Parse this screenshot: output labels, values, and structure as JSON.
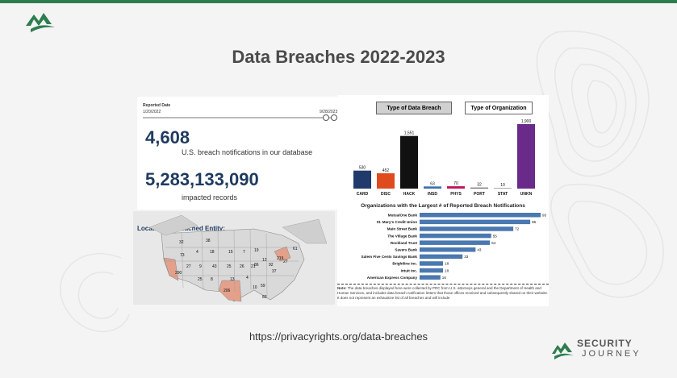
{
  "slide": {
    "title": "Data Breaches 2022-2023",
    "url": "https://privacyrights.org/data-breaches"
  },
  "brand": {
    "line1": "SECURITY",
    "line2": "JOURNEY",
    "color": "#2e7d4f"
  },
  "dashboard": {
    "reported_date_label": "Reported Date",
    "date_start": "1/20/2022",
    "date_end": "9/28/2023",
    "breach_count": "4,608",
    "breach_count_label": "U.S. breach notifications in our database",
    "records": "5,283,133,090",
    "records_label": "impacted records",
    "map_title": "Location of Breached Entity:",
    "tab_type": "Type of Data Breach",
    "tab_org": "Type of Organization",
    "orgs_title": "Organizations with the Largest # of Reported Breach Notifications",
    "note_bold": "Note:",
    "note_text": "The data breaches displayed here were collected by PRC from U.S. attorneys general and the Department of Health and Human Services, and includes data breach notification letters that those offices received and subsequently shared on their website. It does not represent an exhaustive list of all breaches and will include"
  },
  "map_labels": [
    "32",
    "38",
    "73",
    "4",
    "18",
    "15",
    "7",
    "19",
    "12",
    "27",
    "9",
    "43",
    "25",
    "26",
    "21",
    "219",
    "86",
    "92",
    "37",
    "290",
    "25",
    "8",
    "13",
    "4",
    "206",
    "10",
    "59",
    "83",
    "61",
    "27"
  ],
  "chart_data": [
    {
      "type": "bar",
      "categories": [
        "CARD",
        "DISC",
        "HACK",
        "INSD",
        "PHYS",
        "PORT",
        "STAT",
        "UNKN"
      ],
      "values": [
        530,
        452,
        1551,
        63,
        70,
        32,
        10,
        1900
      ],
      "value_labels": [
        "530",
        "452",
        "1,551",
        "63",
        "70",
        "32",
        "10",
        "1,900"
      ],
      "colors": [
        "#1f3a6b",
        "#e04a1f",
        "#111111",
        "#3a6fb0",
        "#c2185b",
        "#777777",
        "#aaaaaa",
        "#6a2a8a"
      ],
      "ylim": [
        0,
        1900
      ]
    },
    {
      "type": "bar",
      "orientation": "horizontal",
      "title": "Organizations with the Largest # of Reported Breach Notifications",
      "categories": [
        "MutualOne Bank",
        "St. Mary's Credit Union",
        "Main Street Bank",
        "The Village Bank",
        "Rockland Trust",
        "Savers Bank",
        "Salem Five Cents Savings Bank",
        "Brightline Inc.",
        "Intuit Inc.",
        "American Express Company"
      ],
      "values": [
        93,
        85,
        72,
        55,
        54,
        43,
        33,
        18,
        18,
        16
      ],
      "color": "#4a78b0",
      "xlim": [
        0,
        93
      ]
    }
  ]
}
